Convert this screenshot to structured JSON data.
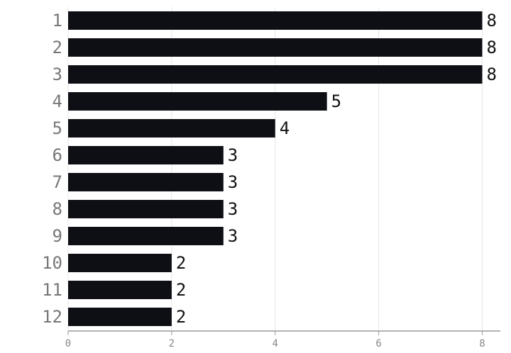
{
  "chart_data": {
    "type": "bar",
    "orientation": "horizontal",
    "categories": [
      "1",
      "2",
      "3",
      "4",
      "5",
      "6",
      "7",
      "8",
      "9",
      "10",
      "11",
      "12"
    ],
    "values": [
      8,
      8,
      8,
      5,
      4,
      3,
      3,
      3,
      3,
      2,
      2,
      2
    ],
    "color": "#0d0f14",
    "xlim": [
      0,
      8.35
    ],
    "xticks": [
      0,
      2,
      4,
      6,
      8
    ],
    "grid": true
  }
}
